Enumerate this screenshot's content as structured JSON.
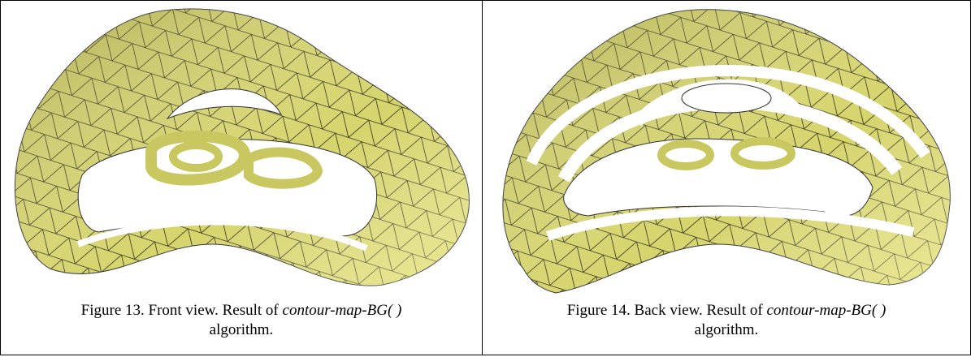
{
  "figures": [
    {
      "caption_start": "Figure 13. Front view. Result of",
      "method": "contour-map-BG( )",
      "caption_end": "algorithm."
    },
    {
      "caption_start": "Figure 14. Back view. Result of",
      "method": "contour-map-BG( )",
      "caption_end": "algorithm."
    }
  ]
}
